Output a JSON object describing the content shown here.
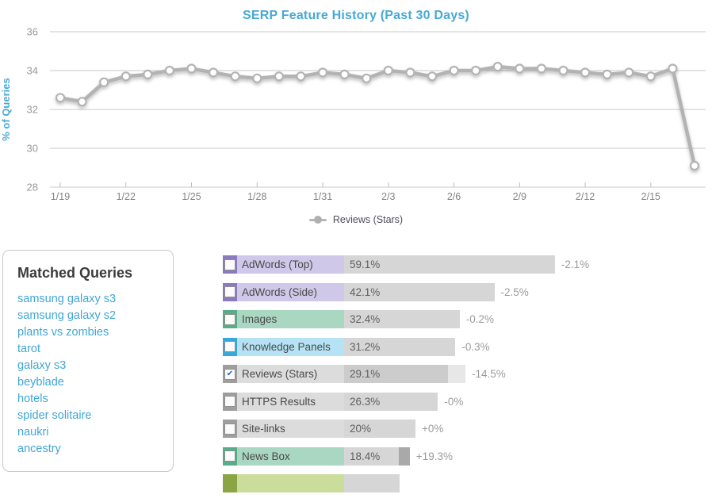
{
  "chart": {
    "title": "SERP Feature History (Past 30 Days)",
    "ylabel": "% of Queries",
    "legend_label": "Reviews (Stars)"
  },
  "chart_data": {
    "type": "line",
    "title": "SERP Feature History (Past 30 Days)",
    "xlabel": "",
    "ylabel": "% of Queries",
    "ylim": [
      28,
      36
    ],
    "yticks": [
      28,
      30,
      32,
      34,
      36
    ],
    "grid": true,
    "legend_position": "bottom",
    "xtick_every": 3,
    "x": [
      "1/19",
      "1/20",
      "1/21",
      "1/22",
      "1/23",
      "1/24",
      "1/25",
      "1/26",
      "1/27",
      "1/28",
      "1/29",
      "1/30",
      "1/31",
      "2/1",
      "2/2",
      "2/3",
      "2/4",
      "2/5",
      "2/6",
      "2/7",
      "2/8",
      "2/9",
      "2/10",
      "2/11",
      "2/12",
      "2/13",
      "2/14",
      "2/15",
      "2/16",
      "2/17"
    ],
    "series": [
      {
        "name": "Reviews (Stars)",
        "values": [
          32.6,
          32.4,
          33.4,
          33.7,
          33.8,
          34.0,
          34.1,
          33.9,
          33.7,
          33.6,
          33.7,
          33.7,
          33.9,
          33.8,
          33.6,
          34.0,
          33.9,
          33.7,
          34.0,
          34.0,
          34.2,
          34.1,
          34.1,
          34.0,
          33.9,
          33.8,
          33.9,
          33.7,
          34.1,
          29.1
        ]
      }
    ]
  },
  "matched_queries": {
    "title": "Matched Queries",
    "items": [
      "samsung galaxy s3",
      "samsung galaxy s2",
      "plants vs zombies",
      "tarot",
      "galaxy s3",
      "beyblade",
      "hotels",
      "spider solitaire",
      "naukri",
      "ancestry"
    ]
  },
  "features": {
    "rows": [
      {
        "label": "AdWords (Top)",
        "value": "59.1%",
        "pct": 59.1,
        "change": "-2.1%",
        "scheme": "purple",
        "checked": false
      },
      {
        "label": "AdWords (Side)",
        "value": "42.1%",
        "pct": 42.1,
        "change": "-2.5%",
        "scheme": "purple",
        "checked": false
      },
      {
        "label": "Images",
        "value": "32.4%",
        "pct": 32.4,
        "change": "-0.2%",
        "scheme": "green",
        "checked": false
      },
      {
        "label": "Knowledge Panels",
        "value": "31.2%",
        "pct": 31.2,
        "change": "-0.3%",
        "scheme": "blue",
        "checked": false
      },
      {
        "label": "Reviews (Stars)",
        "value": "29.1%",
        "pct": 29.1,
        "prev_pct": 34.0,
        "change": "-14.5%",
        "scheme": "gray",
        "checked": true
      },
      {
        "label": "HTTPS Results",
        "value": "26.3%",
        "pct": 26.3,
        "change": "-0%",
        "scheme": "gray",
        "checked": false
      },
      {
        "label": "Site-links",
        "value": "20%",
        "pct": 20,
        "change": "+0%",
        "scheme": "gray",
        "checked": false
      },
      {
        "label": "News Box",
        "value": "18.4%",
        "pct": 18.4,
        "prev_pct": 15.4,
        "change": "+19.3%",
        "scheme": "green",
        "checked": false
      },
      {
        "label": "",
        "value": "",
        "pct": 15.5,
        "change": "",
        "scheme": "olive",
        "checked": false,
        "partial": true
      }
    ]
  },
  "colors": {
    "accent_blue": "#47a9d5",
    "link_blue": "#41a6d4",
    "line_gray": "#b3b3b3",
    "grid_gray": "#c9c9c9",
    "bar_gray": "#d6d6d6",
    "bar_current_loss": "#cccccc",
    "bar_loss_segment": "#e7e7e7",
    "bar_gain_segment": "#a9a9a9",
    "schemes": {
      "purple": {
        "dark": "#8a7bc0",
        "light": "#cfc8e8"
      },
      "green": {
        "dark": "#55ae88",
        "light": "#a9d7c1"
      },
      "blue": {
        "dark": "#38a7da",
        "light": "#b5e2f4"
      },
      "gray": {
        "dark": "#9e9e9e",
        "light": "#dcdcdc"
      },
      "olive": {
        "dark": "#8aa544",
        "light": "#cbdd9b"
      }
    }
  }
}
